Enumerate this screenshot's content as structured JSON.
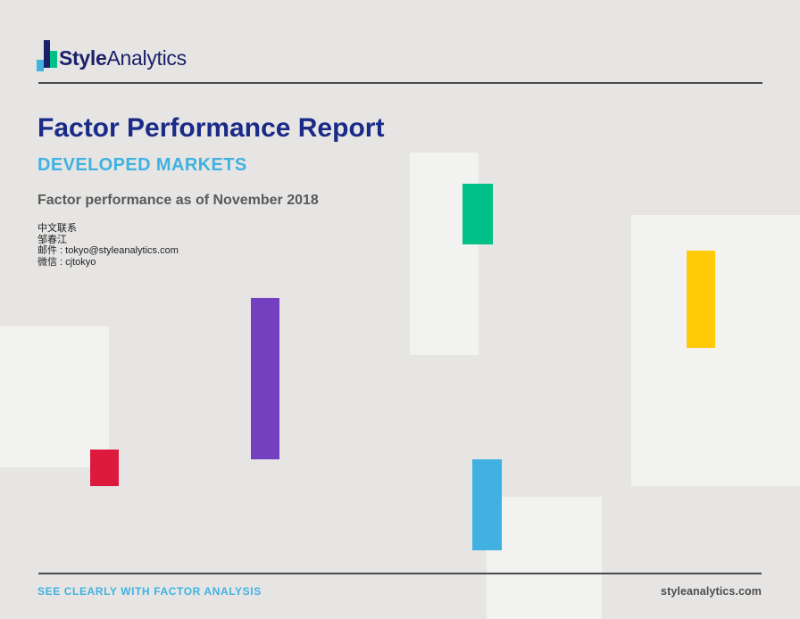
{
  "palette": {
    "bg": "#e6e5e4",
    "tile": "#f2f2f1",
    "navy": "#1a2169",
    "title-navy": "#1a2a87",
    "sky": "#41b1e1",
    "green": "#00c08a",
    "yellow": "#ffca06",
    "purple": "#7340c0",
    "red": "#dc1a3e",
    "gray": "#595959",
    "dark": "#1f1f1f",
    "rule": "#4a4a4a",
    "footer-gray": "#4d4d4d"
  },
  "header": {
    "logo_bold": "Style",
    "logo_regular": "Analytics"
  },
  "main": {
    "title": "Factor Performance Report",
    "subtitle": "DEVELOPED MARKETS",
    "as_of": "Factor performance as of November 2018",
    "contact": {
      "line1": "中文联系",
      "line2": "邹春江",
      "line3": "邮件 : tokyo@styleanalytics.com",
      "line4": "微信 : cjtokyo"
    }
  },
  "footer": {
    "tagline": "SEE CLEARLY WITH FACTOR ANALYSIS",
    "website": "styleanalytics.com"
  },
  "decor": {
    "icons": [
      "logo-bar-navy-icon",
      "logo-bar-green-icon",
      "logo-bar-blue-icon"
    ],
    "accent_bars": [
      "green-bar",
      "yellow-bar",
      "purple-bar",
      "red-bar",
      "blue-bar"
    ]
  }
}
